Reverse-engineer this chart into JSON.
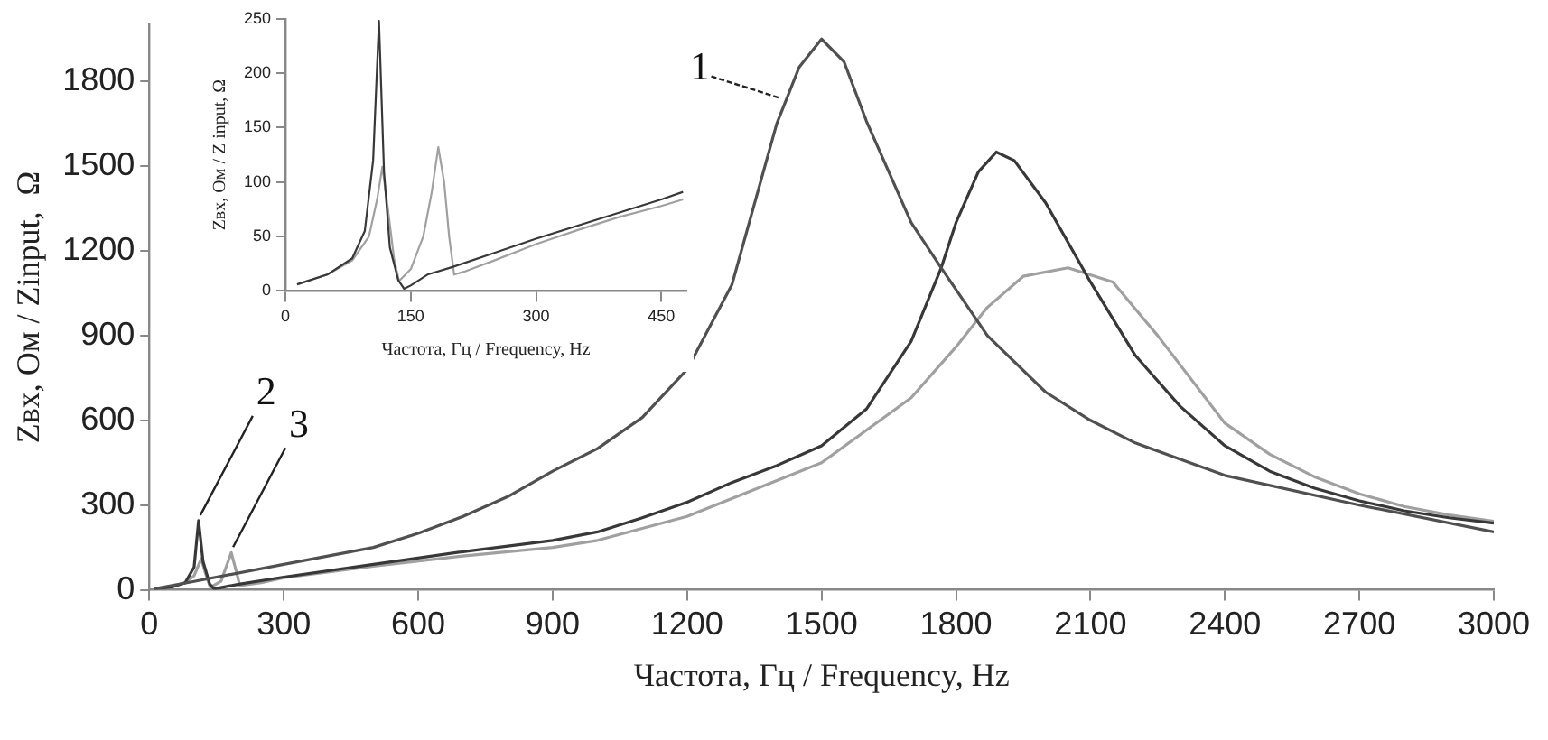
{
  "chart_data": [
    {
      "type": "line",
      "xlabel": "Частота, Гц / Frequency, Hz",
      "ylabel": "Zвх, Ом / Zinput,  Ω",
      "xlim": [
        0,
        3000
      ],
      "xticks": [
        0,
        300,
        600,
        900,
        1200,
        1500,
        1800,
        2100,
        2400,
        2700,
        3000
      ],
      "ylim": [
        0,
        2000
      ],
      "yticks": [
        0,
        300,
        600,
        900,
        1200,
        1500,
        1800
      ],
      "grid": false,
      "legend": false,
      "marker": "none",
      "line_style": "solid",
      "annotations": [
        {
          "text": "1",
          "x": 1420,
          "y": 1730
        },
        {
          "text": "2",
          "x": 110,
          "y": 245
        },
        {
          "text": "3",
          "x": 183,
          "y": 132
        }
      ],
      "series": [
        {
          "color": "#505050",
          "x": [
            10,
            100,
            300,
            500,
            600,
            700,
            800,
            900,
            1000,
            1100,
            1200,
            1300,
            1400,
            1450,
            1500,
            1550,
            1600,
            1700,
            1767,
            1870,
            2000,
            2100,
            2200,
            2400,
            2700,
            3000
          ],
          "values": [
            3,
            30,
            90,
            150,
            200,
            260,
            330,
            420,
            500,
            610,
            780,
            1080,
            1650,
            1850,
            1950,
            1870,
            1660,
            1300,
            1140,
            900,
            700,
            600,
            520,
            405,
            300,
            205
          ]
        },
        {
          "color": "#383838",
          "x": [
            10,
            50,
            80,
            100,
            110,
            120,
            135,
            145,
            160,
            200,
            300,
            500,
            700,
            900,
            1000,
            1100,
            1200,
            1300,
            1400,
            1500,
            1600,
            1700,
            1767,
            1800,
            1850,
            1890,
            1930,
            2000,
            2100,
            2200,
            2300,
            2400,
            2500,
            2600,
            2700,
            2800,
            2900,
            3000
          ],
          "values": [
            3,
            10,
            25,
            80,
            245,
            100,
            20,
            3,
            8,
            20,
            45,
            90,
            135,
            175,
            205,
            255,
            310,
            380,
            440,
            510,
            640,
            880,
            1140,
            1300,
            1480,
            1550,
            1520,
            1370,
            1090,
            830,
            650,
            510,
            420,
            360,
            315,
            280,
            255,
            236
          ]
        },
        {
          "color": "#a0a0a0",
          "x": [
            10,
            50,
            80,
            100,
            116,
            125,
            136,
            160,
            183,
            195,
            202,
            250,
            300,
            500,
            700,
            900,
            1000,
            1200,
            1500,
            1700,
            1800,
            1870,
            1950,
            2050,
            2150,
            2250,
            2400,
            2500,
            2600,
            2700,
            2800,
            2900,
            3000
          ],
          "values": [
            3,
            10,
            25,
            50,
            110,
            60,
            9,
            30,
            132,
            60,
            15,
            25,
            43,
            84,
            120,
            150,
            175,
            260,
            450,
            680,
            860,
            1000,
            1110,
            1140,
            1090,
            900,
            590,
            480,
            400,
            340,
            295,
            265,
            243
          ]
        }
      ]
    },
    {
      "type": "line",
      "xlabel": "Частота, Гц / Frequency, Hz",
      "ylabel": "Zвх, Ом / Z input, Ω",
      "xlim": [
        0,
        480
      ],
      "xticks": [
        0,
        150,
        300,
        450
      ],
      "ylim": [
        0,
        250
      ],
      "yticks": [
        0,
        50,
        100,
        150,
        200,
        250
      ],
      "grid": false,
      "legend": false,
      "marker": "none",
      "line_style": "solid",
      "series": [
        {
          "color": "#383838",
          "x": [
            14,
            50,
            80,
            95,
            105,
            112,
            118,
            125,
            135,
            142,
            150,
            170,
            200,
            250,
            300,
            350,
            400,
            450,
            476
          ],
          "values": [
            6,
            15,
            30,
            55,
            120,
            248,
            110,
            40,
            10,
            2,
            5,
            15,
            22,
            35,
            48,
            60,
            72,
            84,
            91
          ]
        },
        {
          "color": "#a0a0a0",
          "x": [
            14,
            50,
            80,
            100,
            110,
            116,
            122,
            130,
            136,
            150,
            165,
            175,
            183,
            190,
            196,
            202,
            215,
            250,
            300,
            350,
            400,
            450,
            476
          ],
          "values": [
            6,
            15,
            28,
            50,
            85,
            114,
            80,
            30,
            9,
            20,
            50,
            90,
            132,
            100,
            50,
            15,
            18,
            28,
            43,
            56,
            68,
            78,
            84
          ]
        }
      ]
    }
  ]
}
